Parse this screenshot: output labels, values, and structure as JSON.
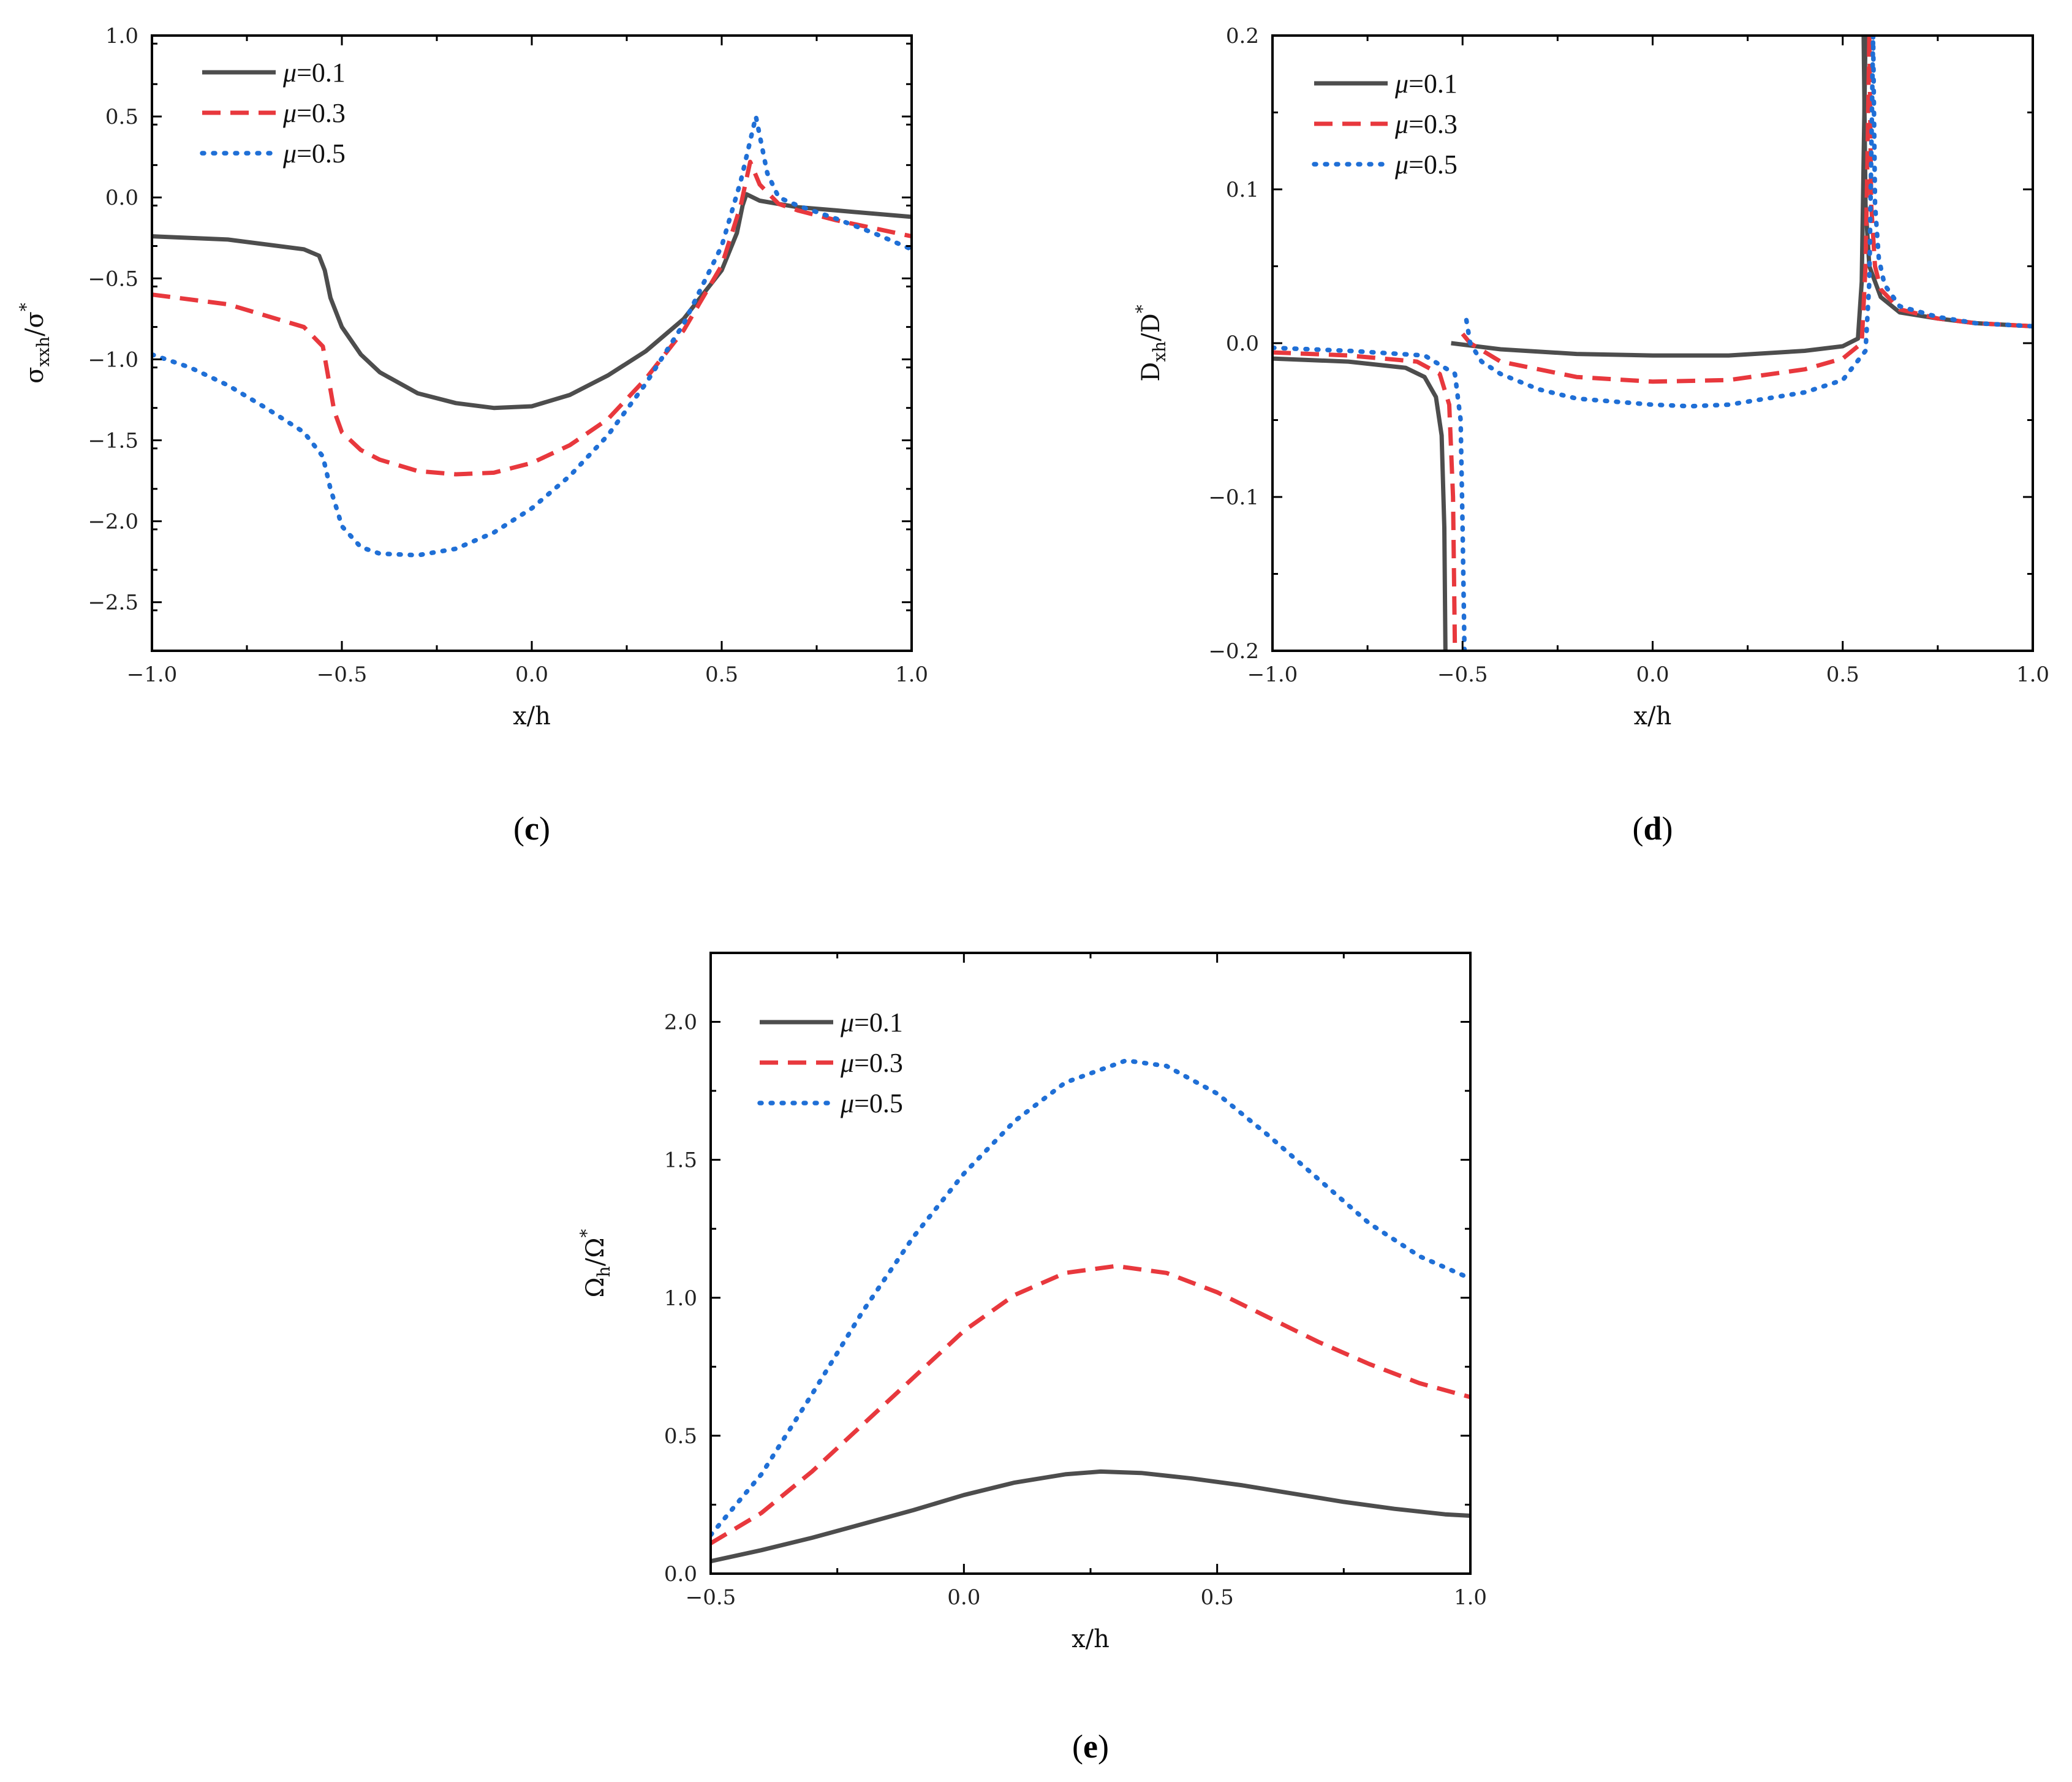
{
  "chart_data": [
    {
      "type": "line",
      "panel": "(c)",
      "panel_letter": "c",
      "xlabel": "x/h",
      "ylabel": {
        "base": "σ",
        "sub": "xxh",
        "tail": "/σ",
        "sup": "*"
      },
      "xlim": [
        -1.0,
        1.0
      ],
      "ylim": [
        -2.8,
        1.0
      ],
      "xticks": [
        -1.0,
        -0.5,
        0.0,
        0.5,
        1.0
      ],
      "yticks": [
        1.0,
        0.5,
        0.0,
        -0.5,
        -1.0,
        -1.5,
        -2.0,
        -2.5
      ],
      "xtick_labels": [
        "−1.0",
        "−0.5",
        "0.0",
        "0.5",
        "1.0"
      ],
      "ytick_labels": [
        "1.0",
        "0.5",
        "0.0",
        "−0.5",
        "−1.0",
        "−1.5",
        "−2.0",
        "−2.5"
      ],
      "legend_position": "top-left",
      "series": [
        {
          "name": "μ=0.1",
          "mu_symbol": "μ",
          "mu_value": "=0.1",
          "color": "#4d4d4d",
          "style": "solid",
          "x": [
            -1.0,
            -0.8,
            -0.6,
            -0.56,
            -0.545,
            -0.53,
            -0.5,
            -0.45,
            -0.4,
            -0.3,
            -0.2,
            -0.1,
            0.0,
            0.1,
            0.2,
            0.3,
            0.4,
            0.5,
            0.54,
            0.555,
            0.565,
            0.6,
            0.7,
            0.8,
            1.0
          ],
          "y": [
            -0.24,
            -0.26,
            -0.32,
            -0.36,
            -0.45,
            -0.62,
            -0.8,
            -0.97,
            -1.08,
            -1.21,
            -1.27,
            -1.3,
            -1.29,
            -1.22,
            -1.1,
            -0.95,
            -0.75,
            -0.45,
            -0.22,
            -0.05,
            0.02,
            -0.02,
            -0.06,
            -0.08,
            -0.12
          ]
        },
        {
          "name": "μ=0.3",
          "mu_symbol": "μ",
          "mu_value": "=0.3",
          "color": "#e8383d",
          "style": "dashed",
          "x": [
            -1.0,
            -0.8,
            -0.6,
            -0.55,
            -0.535,
            -0.52,
            -0.5,
            -0.45,
            -0.4,
            -0.3,
            -0.2,
            -0.1,
            0.0,
            0.1,
            0.2,
            0.3,
            0.4,
            0.5,
            0.55,
            0.575,
            0.6,
            0.65,
            0.7,
            0.8,
            1.0
          ],
          "y": [
            -0.6,
            -0.66,
            -0.8,
            -0.92,
            -1.12,
            -1.32,
            -1.45,
            -1.56,
            -1.62,
            -1.69,
            -1.71,
            -1.7,
            -1.64,
            -1.53,
            -1.37,
            -1.12,
            -0.82,
            -0.42,
            -0.05,
            0.22,
            0.08,
            -0.04,
            -0.08,
            -0.14,
            -0.24
          ]
        },
        {
          "name": "μ=0.5",
          "mu_symbol": "μ",
          "mu_value": "=0.5",
          "color": "#1f6fd6",
          "style": "dotted",
          "x": [
            -1.0,
            -0.9,
            -0.8,
            -0.7,
            -0.6,
            -0.55,
            -0.53,
            -0.51,
            -0.5,
            -0.45,
            -0.4,
            -0.3,
            -0.2,
            -0.1,
            0.0,
            0.1,
            0.2,
            0.3,
            0.4,
            0.5,
            0.55,
            0.59,
            0.62,
            0.65,
            0.7,
            0.8,
            0.9,
            1.0
          ],
          "y": [
            -0.97,
            -1.05,
            -1.16,
            -1.3,
            -1.45,
            -1.6,
            -1.8,
            -1.95,
            -2.03,
            -2.16,
            -2.2,
            -2.21,
            -2.17,
            -2.07,
            -1.92,
            -1.72,
            -1.47,
            -1.15,
            -0.78,
            -0.3,
            0.1,
            0.5,
            0.15,
            0.0,
            -0.05,
            -0.13,
            -0.22,
            -0.32
          ]
        }
      ]
    },
    {
      "type": "line",
      "panel": "(d)",
      "panel_letter": "d",
      "xlabel": "x/h",
      "ylabel": {
        "base": "D",
        "sub": "xh",
        "tail": "/D",
        "sup": "*"
      },
      "xlim": [
        -1.0,
        1.0
      ],
      "ylim": [
        -0.2,
        0.2
      ],
      "xticks": [
        -1.0,
        -0.5,
        0.0,
        0.5,
        1.0
      ],
      "yticks": [
        0.2,
        0.1,
        0.0,
        -0.1,
        -0.2
      ],
      "xtick_labels": [
        "−1.0",
        "−0.5",
        "0.0",
        "0.5",
        "1.0"
      ],
      "ytick_labels": [
        "0.2",
        "0.1",
        "0.0",
        "−0.1",
        "−0.2"
      ],
      "legend_position": "top-left",
      "series": [
        {
          "name": "μ=0.1",
          "mu_symbol": "μ",
          "mu_value": "=0.1",
          "color": "#4d4d4d",
          "style": "solid",
          "segments": [
            {
              "x": [
                -1.0,
                -0.8,
                -0.65,
                -0.6,
                -0.57,
                -0.555,
                -0.548,
                -0.545
              ],
              "y": [
                -0.01,
                -0.012,
                -0.016,
                -0.022,
                -0.035,
                -0.06,
                -0.12,
                -0.2
              ]
            },
            {
              "x": [
                -0.53,
                -0.4,
                -0.2,
                0.0,
                0.2,
                0.4,
                0.5,
                0.54,
                0.55,
                0.555,
                0.56
              ],
              "y": [
                0.0,
                -0.004,
                -0.007,
                -0.008,
                -0.008,
                -0.005,
                -0.002,
                0.003,
                0.04,
                0.12,
                0.2
              ]
            },
            {
              "x": [
                0.555,
                0.56,
                0.57,
                0.6,
                0.65,
                0.75,
                0.85,
                1.0
              ],
              "y": [
                0.2,
                0.09,
                0.05,
                0.03,
                0.02,
                0.016,
                0.013,
                0.011
              ]
            }
          ]
        },
        {
          "name": "μ=0.3",
          "mu_symbol": "μ",
          "mu_value": "=0.3",
          "color": "#e8383d",
          "style": "dashed",
          "segments": [
            {
              "x": [
                -1.0,
                -0.8,
                -0.62,
                -0.56,
                -0.535,
                -0.525,
                -0.52
              ],
              "y": [
                -0.006,
                -0.008,
                -0.012,
                -0.02,
                -0.04,
                -0.1,
                -0.2
              ]
            },
            {
              "x": [
                -0.5,
                -0.48,
                -0.4,
                -0.2,
                0.0,
                0.2,
                0.4,
                0.5,
                0.55,
                0.56,
                0.565,
                0.57
              ],
              "y": [
                0.006,
                0.0,
                -0.012,
                -0.022,
                -0.025,
                -0.024,
                -0.017,
                -0.01,
                0.0,
                0.05,
                0.12,
                0.2
              ]
            },
            {
              "x": [
                0.57,
                0.575,
                0.585,
                0.6,
                0.65,
                0.75,
                0.85,
                1.0
              ],
              "y": [
                0.2,
                0.09,
                0.05,
                0.035,
                0.022,
                0.016,
                0.013,
                0.011
              ]
            }
          ]
        },
        {
          "name": "μ=0.5",
          "mu_symbol": "μ",
          "mu_value": "=0.5",
          "color": "#1f6fd6",
          "style": "dotted",
          "segments": [
            {
              "x": [
                -1.0,
                -0.8,
                -0.6,
                -0.52,
                -0.505,
                -0.5,
                -0.495
              ],
              "y": [
                -0.003,
                -0.005,
                -0.008,
                -0.02,
                -0.05,
                -0.12,
                -0.2
              ]
            },
            {
              "x": [
                -0.49,
                -0.48,
                -0.45,
                -0.4,
                -0.3,
                -0.2,
                0.0,
                0.1,
                0.2,
                0.4,
                0.5,
                0.56,
                0.57,
                0.575,
                0.58
              ],
              "y": [
                0.015,
                0.0,
                -0.012,
                -0.02,
                -0.03,
                -0.036,
                -0.04,
                -0.041,
                -0.04,
                -0.032,
                -0.024,
                -0.005,
                0.04,
                0.12,
                0.2
              ]
            },
            {
              "x": [
                0.58,
                0.585,
                0.595,
                0.61,
                0.65,
                0.75,
                0.85,
                1.0
              ],
              "y": [
                0.2,
                0.09,
                0.055,
                0.038,
                0.024,
                0.017,
                0.013,
                0.011
              ]
            }
          ]
        }
      ]
    },
    {
      "type": "line",
      "panel": "(e)",
      "panel_letter": "e",
      "xlabel": "x/h",
      "ylabel": {
        "base": "Ω",
        "sub": "h",
        "tail": "/Ω",
        "sup": "*"
      },
      "xlim": [
        -0.5,
        1.0
      ],
      "ylim": [
        0.0,
        2.25
      ],
      "xticks": [
        -0.5,
        0.0,
        0.5,
        1.0
      ],
      "yticks": [
        2.0,
        1.5,
        1.0,
        0.5,
        0.0
      ],
      "xtick_labels": [
        "−0.5",
        "0.0",
        "0.5",
        "1.0"
      ],
      "ytick_labels": [
        "2.0",
        "1.5",
        "1.0",
        "0.5",
        "0.0"
      ],
      "legend_position": "top-left",
      "series": [
        {
          "name": "μ=0.1",
          "mu_symbol": "μ",
          "mu_value": "=0.1",
          "color": "#4d4d4d",
          "style": "solid",
          "x": [
            -0.5,
            -0.4,
            -0.3,
            -0.2,
            -0.1,
            0.0,
            0.1,
            0.2,
            0.27,
            0.35,
            0.45,
            0.55,
            0.65,
            0.75,
            0.85,
            0.95,
            1.0
          ],
          "y": [
            0.045,
            0.085,
            0.13,
            0.18,
            0.23,
            0.285,
            0.33,
            0.36,
            0.37,
            0.365,
            0.345,
            0.32,
            0.29,
            0.26,
            0.235,
            0.215,
            0.21
          ]
        },
        {
          "name": "μ=0.3",
          "mu_symbol": "μ",
          "mu_value": "=0.3",
          "color": "#e8383d",
          "style": "dashed",
          "x": [
            -0.5,
            -0.4,
            -0.3,
            -0.2,
            -0.1,
            0.0,
            0.1,
            0.2,
            0.3,
            0.4,
            0.5,
            0.6,
            0.7,
            0.8,
            0.9,
            1.0
          ],
          "y": [
            0.11,
            0.22,
            0.37,
            0.54,
            0.71,
            0.88,
            1.01,
            1.09,
            1.115,
            1.09,
            1.02,
            0.93,
            0.84,
            0.76,
            0.69,
            0.64
          ]
        },
        {
          "name": "μ=0.5",
          "mu_symbol": "μ",
          "mu_value": "=0.5",
          "color": "#1f6fd6",
          "style": "dotted",
          "x": [
            -0.5,
            -0.4,
            -0.3,
            -0.2,
            -0.1,
            0.0,
            0.1,
            0.2,
            0.32,
            0.4,
            0.5,
            0.6,
            0.7,
            0.8,
            0.9,
            1.0
          ],
          "y": [
            0.14,
            0.36,
            0.65,
            0.95,
            1.22,
            1.45,
            1.64,
            1.78,
            1.86,
            1.84,
            1.74,
            1.59,
            1.43,
            1.27,
            1.15,
            1.07
          ]
        }
      ]
    }
  ]
}
